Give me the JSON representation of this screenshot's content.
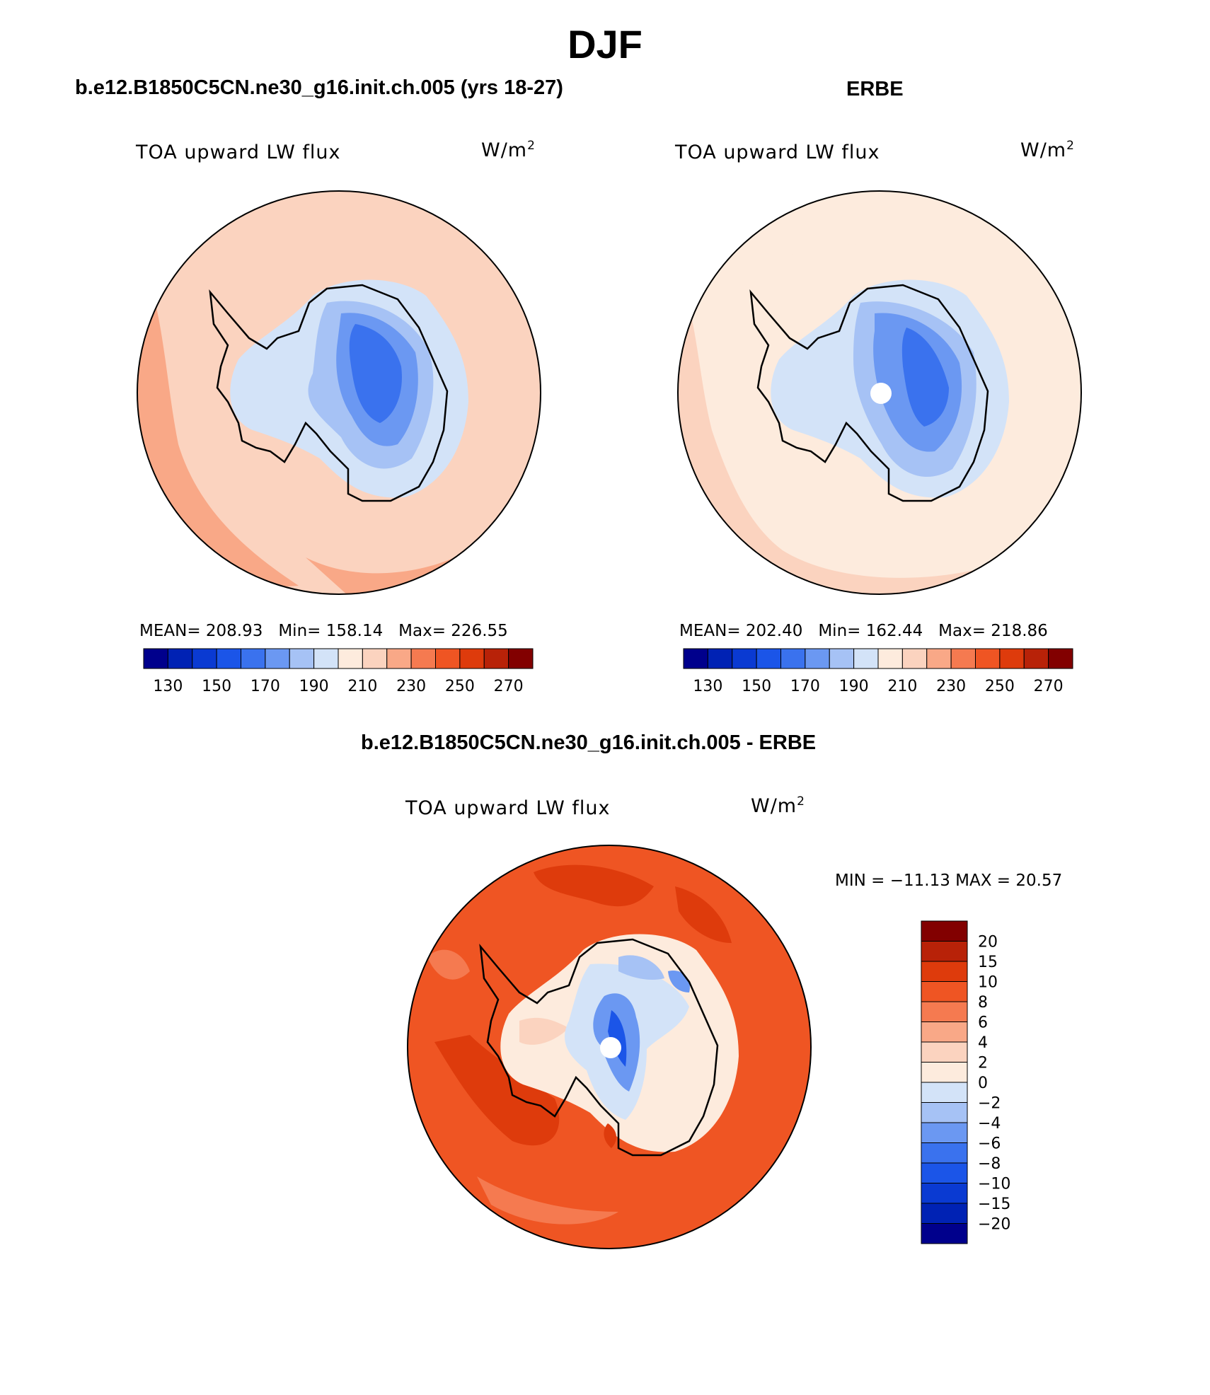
{
  "title": "DJF",
  "panels": [
    {
      "case_title": "b.e12.B1850C5CN.ne30_g16.init.ch.005 (yrs 18-27)",
      "variable": "TOA upward LW flux",
      "units_base": "W/m",
      "units_exp": "2",
      "stats": {
        "mean_label": "MEAN=",
        "mean": "208.93",
        "min_label": "Min=",
        "min": "158.14",
        "max_label": "Max=",
        "max": "226.55"
      }
    },
    {
      "case_title": "ERBE",
      "variable": "TOA upward LW flux",
      "units_base": "W/m",
      "units_exp": "2",
      "stats": {
        "mean_label": "MEAN=",
        "mean": "202.40",
        "min_label": "Min=",
        "min": "162.44",
        "max_label": "Max=",
        "max": "218.86"
      }
    },
    {
      "case_title": "b.e12.B1850C5CN.ne30_g16.init.ch.005 - ERBE",
      "variable": "TOA upward LW flux",
      "units_base": "W/m",
      "units_exp": "2",
      "minmax": "MIN = −11.13 MAX =  20.57"
    }
  ],
  "colorbar_abs": {
    "colors": [
      "#00008c",
      "#0022b4",
      "#0a3ad2",
      "#1b55e8",
      "#3a72ee",
      "#6b98f2",
      "#a6c2f5",
      "#d3e3f8",
      "#fdebdd",
      "#fbd3bf",
      "#f9a887",
      "#f57a50",
      "#ef5523",
      "#de3b0c",
      "#b82208",
      "#820000"
    ],
    "tick_labels": [
      "130",
      "150",
      "170",
      "190",
      "210",
      "230",
      "250",
      "270"
    ]
  },
  "colorbar_diff": {
    "colors_top_to_bottom": [
      "#820000",
      "#b82208",
      "#de3b0c",
      "#ef5523",
      "#f57a50",
      "#f9a887",
      "#fbd3bf",
      "#fdebdd",
      "#d3e3f8",
      "#a6c2f5",
      "#6b98f2",
      "#3a72ee",
      "#1b55e8",
      "#0a3ad2",
      "#0022b4",
      "#00008c"
    ],
    "tick_labels": [
      "20",
      "15",
      "10",
      "8",
      "6",
      "4",
      "2",
      "0",
      "−2",
      "−4",
      "−6",
      "−8",
      "−10",
      "−15",
      "−20"
    ]
  },
  "map_fill_colors": {
    "panel_model_ocean": "#fbd3bf",
    "panel_model_ocean_warm": "#f9a887",
    "panel_erbe_ocean": "#fdebdd",
    "panel_diff_ocean": "#ef5523",
    "panel_diff_ocean_hot": "#de3b0c"
  }
}
